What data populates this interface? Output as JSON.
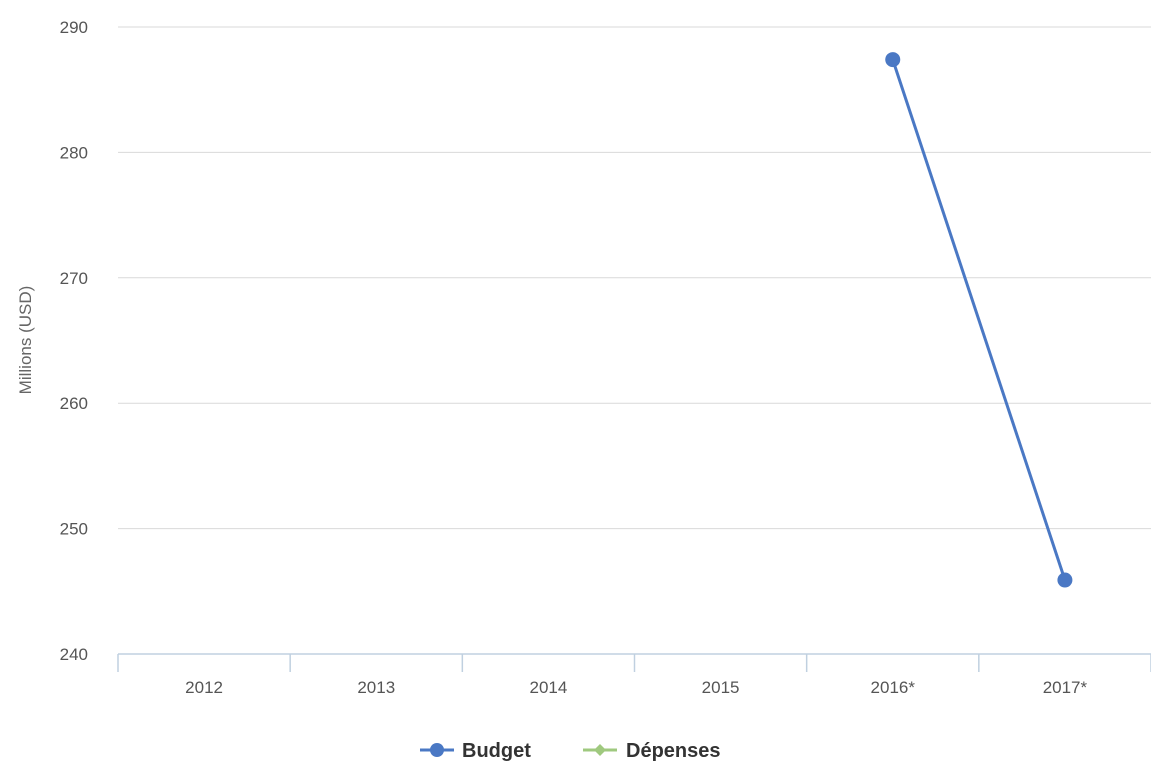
{
  "chart_data": {
    "type": "line",
    "title": "",
    "xlabel": "",
    "ylabel": "Millions (USD)",
    "categories": [
      "2012",
      "2013",
      "2014",
      "2015",
      "2016*",
      "2017*"
    ],
    "ylim": [
      240,
      290
    ],
    "yticks": [
      240,
      250,
      260,
      270,
      280,
      290
    ],
    "grid": true,
    "legend_position": "bottom",
    "series": [
      {
        "name": "Budget",
        "color": "#4a78c4",
        "marker": "circle",
        "values": [
          null,
          null,
          null,
          null,
          287.4,
          245.9
        ]
      },
      {
        "name": "Dépenses",
        "color": "#9fc97f",
        "marker": "diamond",
        "values": [
          null,
          null,
          null,
          null,
          null,
          null
        ]
      }
    ]
  }
}
